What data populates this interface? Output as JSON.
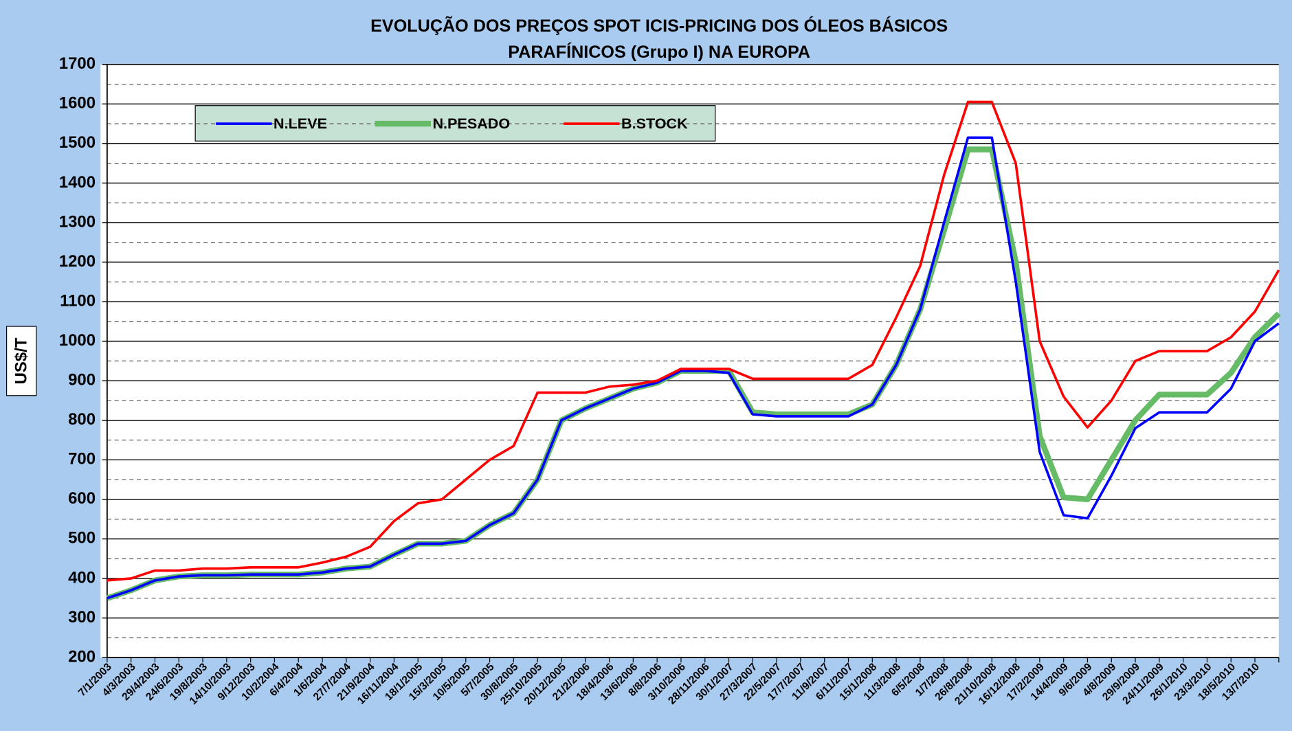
{
  "chart_data": {
    "type": "line",
    "title": [
      "EVOLUÇÃO DOS PREÇOS SPOT ICIS-PRICING DOS ÓLEOS BÁSICOS",
      "PARAFÍNICOS (Grupo I) NA EUROPA"
    ],
    "y_label": "US$/T",
    "categories": [
      "7/1/2003",
      "4/3/2003",
      "29/4/2003",
      "24/6/2003",
      "19/8/2003",
      "14/10/2003",
      "9/12/2003",
      "10/2/2004",
      "6/4/2004",
      "1/6/2004",
      "27/7/2004",
      "21/9/2004",
      "16/11/2004",
      "18/1/2005",
      "15/3/2005",
      "10/5/2005",
      "5/7/2005",
      "30/8/2005",
      "25/10/2005",
      "20/12/2005",
      "21/2/2006",
      "18/4/2006",
      "13/6/2006",
      "8/8/2006",
      "3/10/2006",
      "28/11/2006",
      "30/1/2007",
      "27/3/2007",
      "22/5/2007",
      "17/7/2007",
      "11/9/2007",
      "6/11/2007",
      "15/1/2008",
      "11/3/2008",
      "6/5/2008",
      "1/7/2008",
      "26/8/2008",
      "21/10/2008",
      "16/12/2008",
      "17/2/2009",
      "14/4/2009",
      "9/6/2009",
      "4/8/2009",
      "29/9/2009",
      "24/11/2009",
      "26/1/2010",
      "23/3/2010",
      "18/5/2010",
      "13/7/2010",
      null
    ],
    "series": [
      {
        "name": "N.LEVE",
        "color": "#0000ff",
        "width": 3,
        "values": [
          350,
          370,
          395,
          405,
          408,
          408,
          410,
          410,
          410,
          415,
          425,
          430,
          460,
          488,
          488,
          495,
          535,
          565,
          650,
          800,
          830,
          855,
          880,
          895,
          925,
          925,
          920,
          815,
          810,
          810,
          810,
          810,
          840,
          940,
          1080,
          1300,
          1515,
          1515,
          1150,
          720,
          560,
          552,
          660,
          780,
          820,
          820,
          820,
          880,
          1000,
          1045
        ]
      },
      {
        "name": "N.PESADO",
        "color": "#66bb66",
        "width": 7,
        "values": [
          350,
          370,
          395,
          405,
          408,
          408,
          410,
          410,
          410,
          415,
          425,
          430,
          460,
          488,
          488,
          495,
          535,
          565,
          650,
          800,
          830,
          855,
          880,
          895,
          925,
          925,
          925,
          820,
          815,
          815,
          815,
          815,
          840,
          940,
          1080,
          1280,
          1485,
          1485,
          1200,
          760,
          605,
          600,
          700,
          800,
          865,
          865,
          865,
          920,
          1010,
          1070
        ]
      },
      {
        "name": "B.STOCK",
        "color": "#ff0000",
        "width": 3,
        "values": [
          395,
          400,
          420,
          420,
          425,
          425,
          428,
          428,
          428,
          440,
          455,
          480,
          545,
          590,
          600,
          650,
          700,
          735,
          870,
          870,
          870,
          885,
          890,
          900,
          930,
          930,
          930,
          905,
          905,
          905,
          905,
          905,
          940,
          1060,
          1190,
          1420,
          1605,
          1605,
          1450,
          1000,
          860,
          782,
          850,
          950,
          975,
          975,
          975,
          1010,
          1075,
          1180
        ]
      }
    ],
    "ylim": [
      200,
      1700
    ],
    "yticks": [
      200,
      300,
      400,
      500,
      600,
      700,
      800,
      900,
      1000,
      1100,
      1200,
      1300,
      1400,
      1500,
      1600,
      1700
    ],
    "grid": true
  }
}
